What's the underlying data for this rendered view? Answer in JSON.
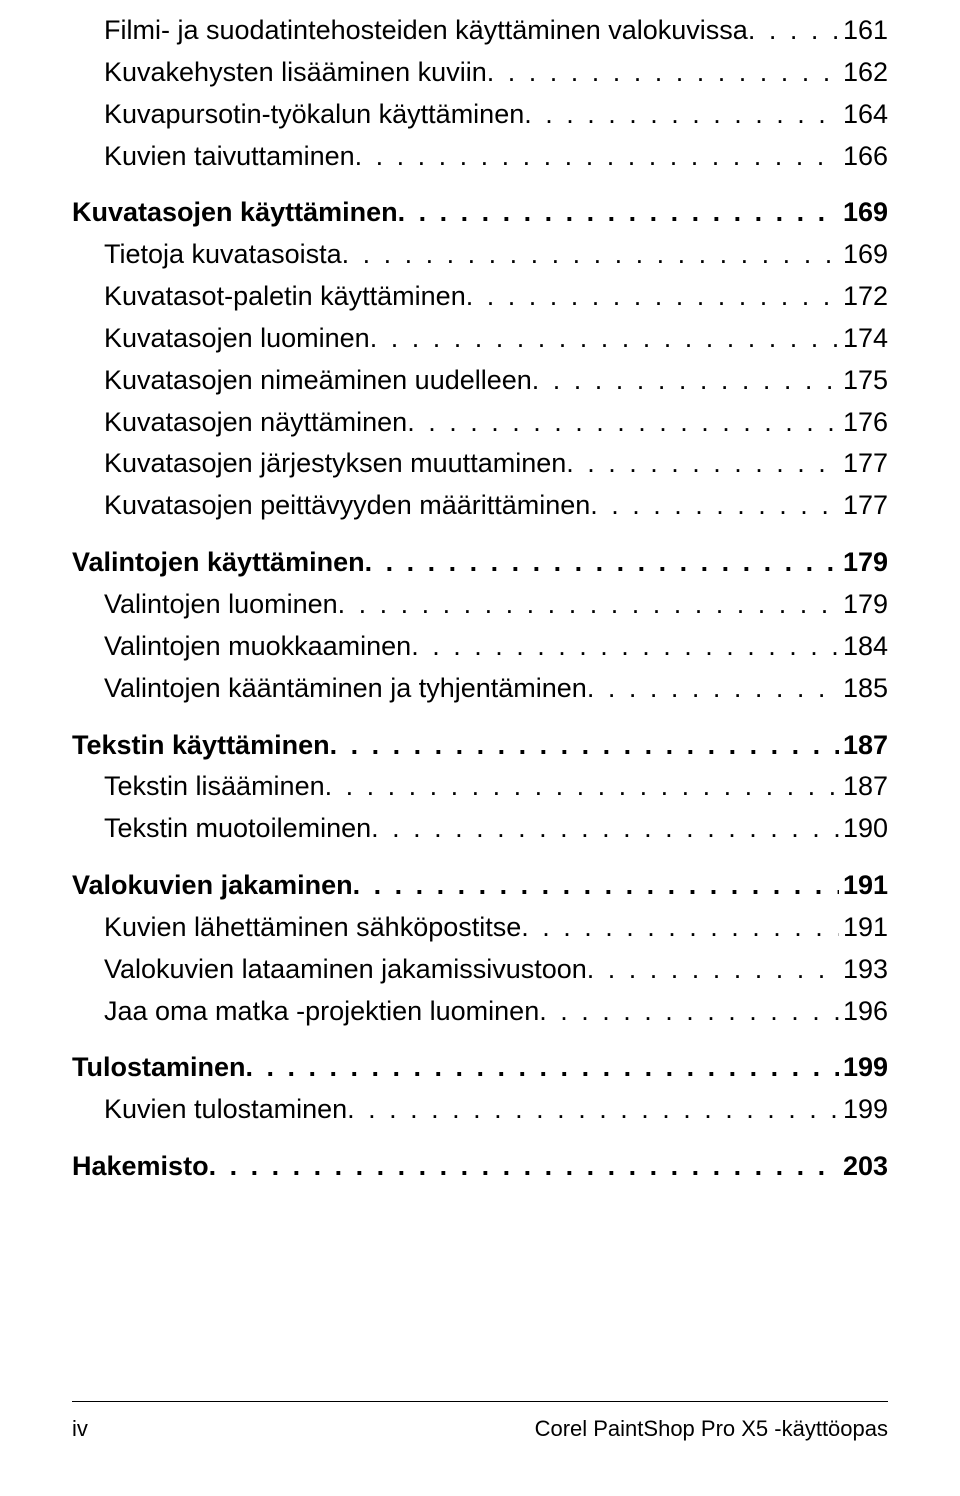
{
  "colors": {
    "background": "#ffffff",
    "text": "#000000",
    "rule": "#000000"
  },
  "typography": {
    "body_fontsize_pt": 20,
    "level1_weight": 600,
    "level2_weight": 400,
    "footer_fontsize_pt": 16
  },
  "toc": [
    {
      "level": 2,
      "label": "Filmi- ja suodatintehosteiden käyttäminen valokuvissa",
      "page": "161"
    },
    {
      "level": 2,
      "label": "Kuvakehysten lisääminen kuviin",
      "page": "162"
    },
    {
      "level": 2,
      "label": "Kuvapursotin-työkalun käyttäminen",
      "page": "164"
    },
    {
      "level": 2,
      "label": "Kuvien taivuttaminen",
      "page": "166"
    },
    {
      "level": 1,
      "label": "Kuvatasojen käyttäminen",
      "page": "169"
    },
    {
      "level": 2,
      "label": "Tietoja kuvatasoista",
      "page": "169"
    },
    {
      "level": 2,
      "label": "Kuvatasot-paletin käyttäminen",
      "page": "172"
    },
    {
      "level": 2,
      "label": "Kuvatasojen luominen",
      "page": "174"
    },
    {
      "level": 2,
      "label": "Kuvatasojen nimeäminen uudelleen",
      "page": "175"
    },
    {
      "level": 2,
      "label": "Kuvatasojen näyttäminen",
      "page": "176"
    },
    {
      "level": 2,
      "label": "Kuvatasojen järjestyksen muuttaminen",
      "page": "177"
    },
    {
      "level": 2,
      "label": "Kuvatasojen peittävyyden määrittäminen",
      "page": "177"
    },
    {
      "level": 1,
      "label": "Valintojen käyttäminen",
      "page": "179"
    },
    {
      "level": 2,
      "label": "Valintojen luominen",
      "page": "179"
    },
    {
      "level": 2,
      "label": "Valintojen muokkaaminen",
      "page": "184"
    },
    {
      "level": 2,
      "label": "Valintojen kääntäminen ja tyhjentäminen",
      "page": "185"
    },
    {
      "level": 1,
      "label": "Tekstin käyttäminen",
      "page": "187"
    },
    {
      "level": 2,
      "label": "Tekstin lisääminen",
      "page": "187"
    },
    {
      "level": 2,
      "label": "Tekstin muotoileminen",
      "page": "190"
    },
    {
      "level": 1,
      "label": "Valokuvien jakaminen",
      "page": "191"
    },
    {
      "level": 2,
      "label": "Kuvien lähettäminen sähköpostitse",
      "page": "191"
    },
    {
      "level": 2,
      "label": "Valokuvien lataaminen jakamissivustoon",
      "page": "193"
    },
    {
      "level": 2,
      "label": "Jaa oma matka -projektien luominen",
      "page": "196"
    },
    {
      "level": 1,
      "label": "Tulostaminen",
      "page": "199"
    },
    {
      "level": 2,
      "label": "Kuvien tulostaminen",
      "page": "199"
    },
    {
      "level": 1,
      "label": "Hakemisto",
      "page": "203"
    }
  ],
  "footer": {
    "left": "iv",
    "right": "Corel PaintShop Pro X5 -käyttöopas"
  }
}
